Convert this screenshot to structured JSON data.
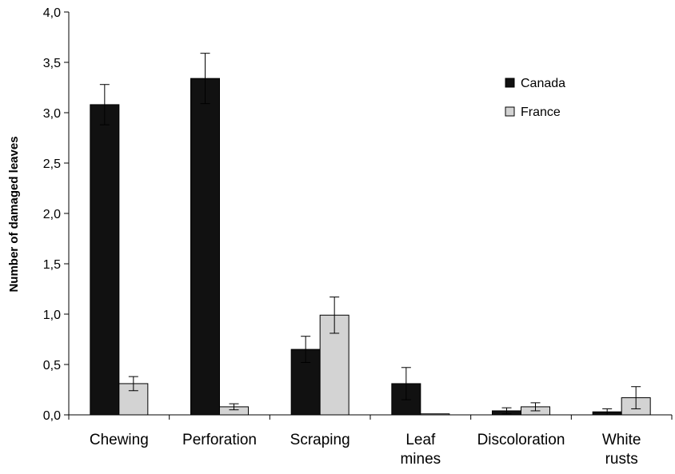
{
  "chart_data": {
    "type": "bar",
    "title": "",
    "xlabel": "",
    "ylabel": "Number of damaged leaves",
    "ylim": [
      0,
      4.0
    ],
    "ytick_step": 0.5,
    "ytick_labels": [
      "0,0",
      "0,5",
      "1,0",
      "1,5",
      "2,0",
      "2,5",
      "3,0",
      "3,5",
      "4,0"
    ],
    "categories": [
      [
        "Chewing"
      ],
      [
        "Perforation"
      ],
      [
        "Scraping"
      ],
      [
        "Leaf",
        "mines"
      ],
      [
        "Discoloration"
      ],
      [
        "White",
        "rusts"
      ]
    ],
    "series": [
      {
        "name": "Canada",
        "color": "#111111",
        "values": [
          3.08,
          3.34,
          0.65,
          0.31,
          0.04,
          0.03
        ],
        "errors": [
          0.2,
          0.25,
          0.13,
          0.16,
          0.03,
          0.03
        ]
      },
      {
        "name": "France",
        "color": "#d3d3d3",
        "values": [
          0.31,
          0.08,
          0.99,
          0.01,
          0.08,
          0.17
        ],
        "errors": [
          0.07,
          0.03,
          0.18,
          0.0,
          0.04,
          0.11
        ]
      }
    ],
    "legend_position": "top-right",
    "grid": false
  }
}
